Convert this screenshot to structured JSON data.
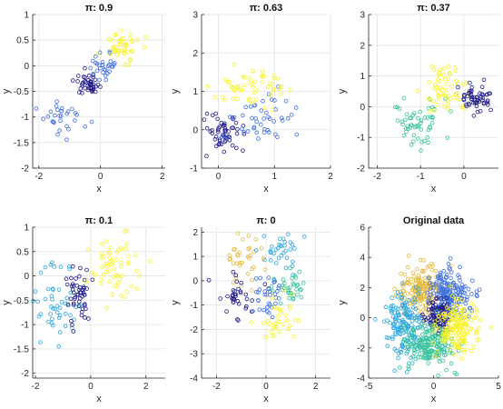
{
  "figure": {
    "description": ""
  },
  "palette": [
    "#1f1a8a",
    "#3e6fe0",
    "#2ea7e0",
    "#34c29a",
    "#e4b93a",
    "#f7f227"
  ],
  "chart_data": [
    {
      "type": "scatter",
      "title": "π: 0.9",
      "xlabel": "x",
      "ylabel": "y",
      "xlim": [
        -2.2,
        2.1
      ],
      "ylim": [
        -2,
        1
      ],
      "xticks": [
        -2,
        0,
        2
      ],
      "yticks": [
        -2,
        -1.5,
        -1,
        -0.5,
        0,
        0.5,
        1
      ],
      "grid": true,
      "clusters": [
        {
          "cx": -1.2,
          "cy": -1.05,
          "sx": 0.35,
          "sy": 0.18,
          "n": 30,
          "color": 1
        },
        {
          "cx": -0.4,
          "cy": -0.35,
          "sx": 0.2,
          "sy": 0.1,
          "n": 45,
          "color": 0
        },
        {
          "cx": 0.1,
          "cy": 0.0,
          "sx": 0.25,
          "sy": 0.12,
          "n": 30,
          "color": 1
        },
        {
          "cx": 0.7,
          "cy": 0.4,
          "sx": 0.35,
          "sy": 0.15,
          "n": 45,
          "color": 5
        }
      ]
    },
    {
      "type": "scatter",
      "title": "π: 0.63",
      "xlabel": "x",
      "ylabel": "y",
      "xlim": [
        -0.3,
        2
      ],
      "ylim": [
        -1,
        3
      ],
      "xticks": [
        0,
        1,
        2
      ],
      "yticks": [
        -1,
        0,
        1,
        2,
        3
      ],
      "grid": true,
      "clusters": [
        {
          "cx": 0.05,
          "cy": -0.15,
          "sx": 0.2,
          "sy": 0.25,
          "n": 55,
          "color": 0
        },
        {
          "cx": 0.75,
          "cy": 0.25,
          "sx": 0.28,
          "sy": 0.35,
          "n": 45,
          "color": 1
        },
        {
          "cx": 0.55,
          "cy": 1.1,
          "sx": 0.3,
          "sy": 0.3,
          "n": 55,
          "color": 5
        }
      ]
    },
    {
      "type": "scatter",
      "title": "π: 0.37",
      "xlabel": "x",
      "ylabel": "y",
      "xlim": [
        -2.2,
        0.8
      ],
      "ylim": [
        -2,
        3
      ],
      "xticks": [
        -2,
        -1,
        0
      ],
      "yticks": [
        -2,
        -1,
        0,
        1,
        2,
        3
      ],
      "grid": true,
      "clusters": [
        {
          "cx": -1.05,
          "cy": -0.5,
          "sx": 0.3,
          "sy": 0.4,
          "n": 55,
          "color": 3
        },
        {
          "cx": -0.45,
          "cy": 0.5,
          "sx": 0.25,
          "sy": 0.45,
          "n": 60,
          "color": 5
        },
        {
          "cx": 0.3,
          "cy": 0.25,
          "sx": 0.22,
          "sy": 0.25,
          "n": 55,
          "color": 0
        }
      ]
    },
    {
      "type": "scatter",
      "title": "π: 0.1",
      "xlabel": "x",
      "ylabel": "y",
      "xlim": [
        -2.1,
        2.7
      ],
      "ylim": [
        -2.1,
        1
      ],
      "xticks": [
        -2,
        0,
        2
      ],
      "yticks": [
        -2,
        -1.5,
        -1,
        -0.5,
        0,
        0.5,
        1
      ],
      "grid": true,
      "clusters": [
        {
          "cx": -1.2,
          "cy": -0.6,
          "sx": 0.45,
          "sy": 0.4,
          "n": 50,
          "color": 2
        },
        {
          "cx": -0.45,
          "cy": -0.35,
          "sx": 0.25,
          "sy": 0.3,
          "n": 50,
          "color": 0
        },
        {
          "cx": 0.8,
          "cy": 0.2,
          "sx": 0.55,
          "sy": 0.3,
          "n": 60,
          "color": 5
        }
      ]
    },
    {
      "type": "scatter",
      "title": "π: 0",
      "xlabel": "x",
      "ylabel": "y",
      "xlim": [
        -2.6,
        2.6
      ],
      "ylim": [
        -4,
        2.2
      ],
      "xticks": [
        -2,
        0,
        2
      ],
      "yticks": [
        -4,
        -3,
        -2,
        -1,
        0,
        1,
        2
      ],
      "grid": true,
      "clusters": [
        {
          "cx": -0.8,
          "cy": 0.9,
          "sx": 0.45,
          "sy": 0.45,
          "n": 35,
          "color": 4
        },
        {
          "cx": 0.6,
          "cy": 1.1,
          "sx": 0.4,
          "sy": 0.45,
          "n": 35,
          "color": 2
        },
        {
          "cx": -1.1,
          "cy": -0.6,
          "sx": 0.45,
          "sy": 0.5,
          "n": 35,
          "color": 0
        },
        {
          "cx": 0.0,
          "cy": -0.7,
          "sx": 0.35,
          "sy": 0.45,
          "n": 35,
          "color": 1
        },
        {
          "cx": 1.1,
          "cy": -0.3,
          "sx": 0.35,
          "sy": 0.45,
          "n": 35,
          "color": 3
        },
        {
          "cx": 0.6,
          "cy": -1.5,
          "sx": 0.4,
          "sy": 0.5,
          "n": 35,
          "color": 5
        }
      ]
    },
    {
      "type": "scatter",
      "title": "Original data",
      "xlabel": "x",
      "ylabel": "y",
      "xlim": [
        -5,
        5
      ],
      "ylim": [
        -4,
        6
      ],
      "xticks": [
        -5,
        0,
        5
      ],
      "yticks": [
        -4,
        -2,
        0,
        2,
        4,
        6
      ],
      "grid": false,
      "clusters": [
        {
          "cx": -1.0,
          "cy": 1.8,
          "sx": 0.8,
          "sy": 0.8,
          "n": 180,
          "color": 4
        },
        {
          "cx": 1.2,
          "cy": 1.6,
          "sx": 0.8,
          "sy": 0.8,
          "n": 180,
          "color": 1
        },
        {
          "cx": -2.2,
          "cy": -0.5,
          "sx": 0.7,
          "sy": 1.0,
          "n": 160,
          "color": 2
        },
        {
          "cx": 0.3,
          "cy": 0.2,
          "sx": 0.5,
          "sy": 0.5,
          "n": 100,
          "color": 0
        },
        {
          "cx": -0.2,
          "cy": -1.8,
          "sx": 0.9,
          "sy": 0.7,
          "n": 180,
          "color": 3
        },
        {
          "cx": 1.8,
          "cy": -0.6,
          "sx": 0.8,
          "sy": 0.9,
          "n": 180,
          "color": 5
        }
      ]
    }
  ]
}
